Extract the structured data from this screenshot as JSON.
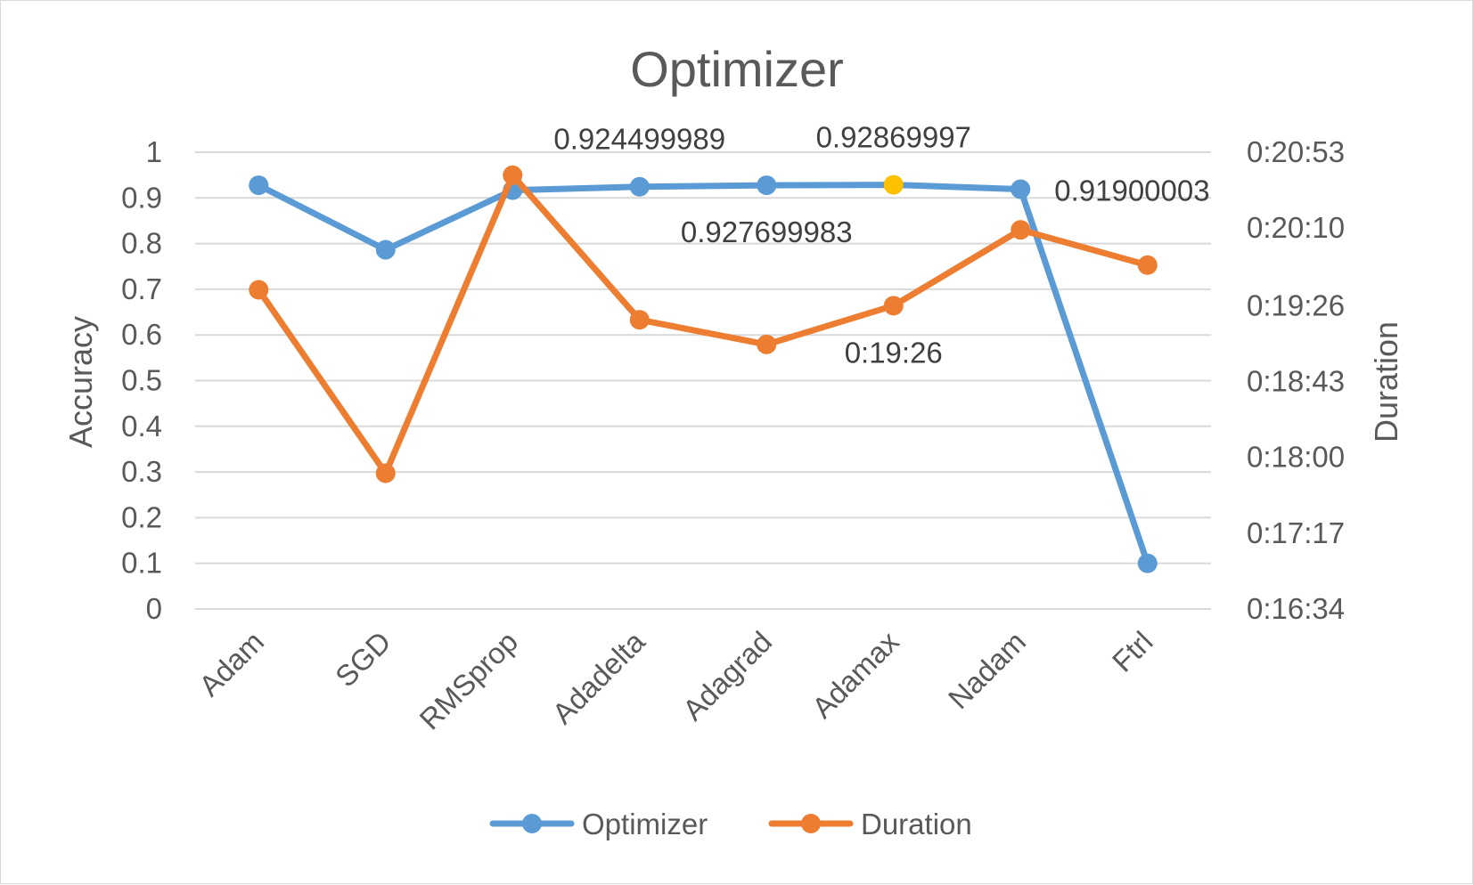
{
  "chart_data": {
    "type": "line",
    "title": "Optimizer",
    "categories": [
      "Adam",
      "SGD",
      "RMSprop",
      "Adadelta",
      "Adagrad",
      "Adamax",
      "Nadam",
      "Ftrl"
    ],
    "series": [
      {
        "name": "Optimizer",
        "axis": "left",
        "color": "#5b9bd5",
        "values": [
          0.9277,
          0.7865,
          0.9169,
          0.924499989,
          0.927699983,
          0.92869997,
          0.91900003,
          0.1
        ],
        "highlight_index": 5,
        "highlight_color": "#ffc000"
      },
      {
        "name": "Duration",
        "axis": "right",
        "color": "#ed7d31",
        "values": [
          "0:19:35",
          "0:17:51",
          "0:20:40",
          "0:19:18",
          "0:19:04",
          "0:19:26",
          "0:20:09",
          "0:19:49"
        ]
      }
    ],
    "y_left": {
      "label": "Accuracy",
      "min": 0,
      "max": 1,
      "ticks": [
        "0",
        "0.1",
        "0.2",
        "0.3",
        "0.4",
        "0.5",
        "0.6",
        "0.7",
        "0.8",
        "0.9",
        "1"
      ]
    },
    "y_right": {
      "label": "Duration",
      "min": "0:16:34",
      "max": "0:20:53",
      "ticks": [
        "0:16:34",
        "0:17:17",
        "0:18:00",
        "0:18:43",
        "0:19:26",
        "0:20:10",
        "0:20:53"
      ]
    },
    "data_labels": [
      {
        "series": "Optimizer",
        "index": 3,
        "text": "0.924499989",
        "placement": "above"
      },
      {
        "series": "Optimizer",
        "index": 4,
        "text": "0.927699983",
        "placement": "below"
      },
      {
        "series": "Optimizer",
        "index": 5,
        "text": "0.92869997",
        "placement": "above"
      },
      {
        "series": "Optimizer",
        "index": 6,
        "text": "0.91900003",
        "placement": "right"
      },
      {
        "series": "Duration",
        "index": 5,
        "text": "0:19:26",
        "placement": "below"
      }
    ],
    "grid": true,
    "legend": "bottom"
  }
}
